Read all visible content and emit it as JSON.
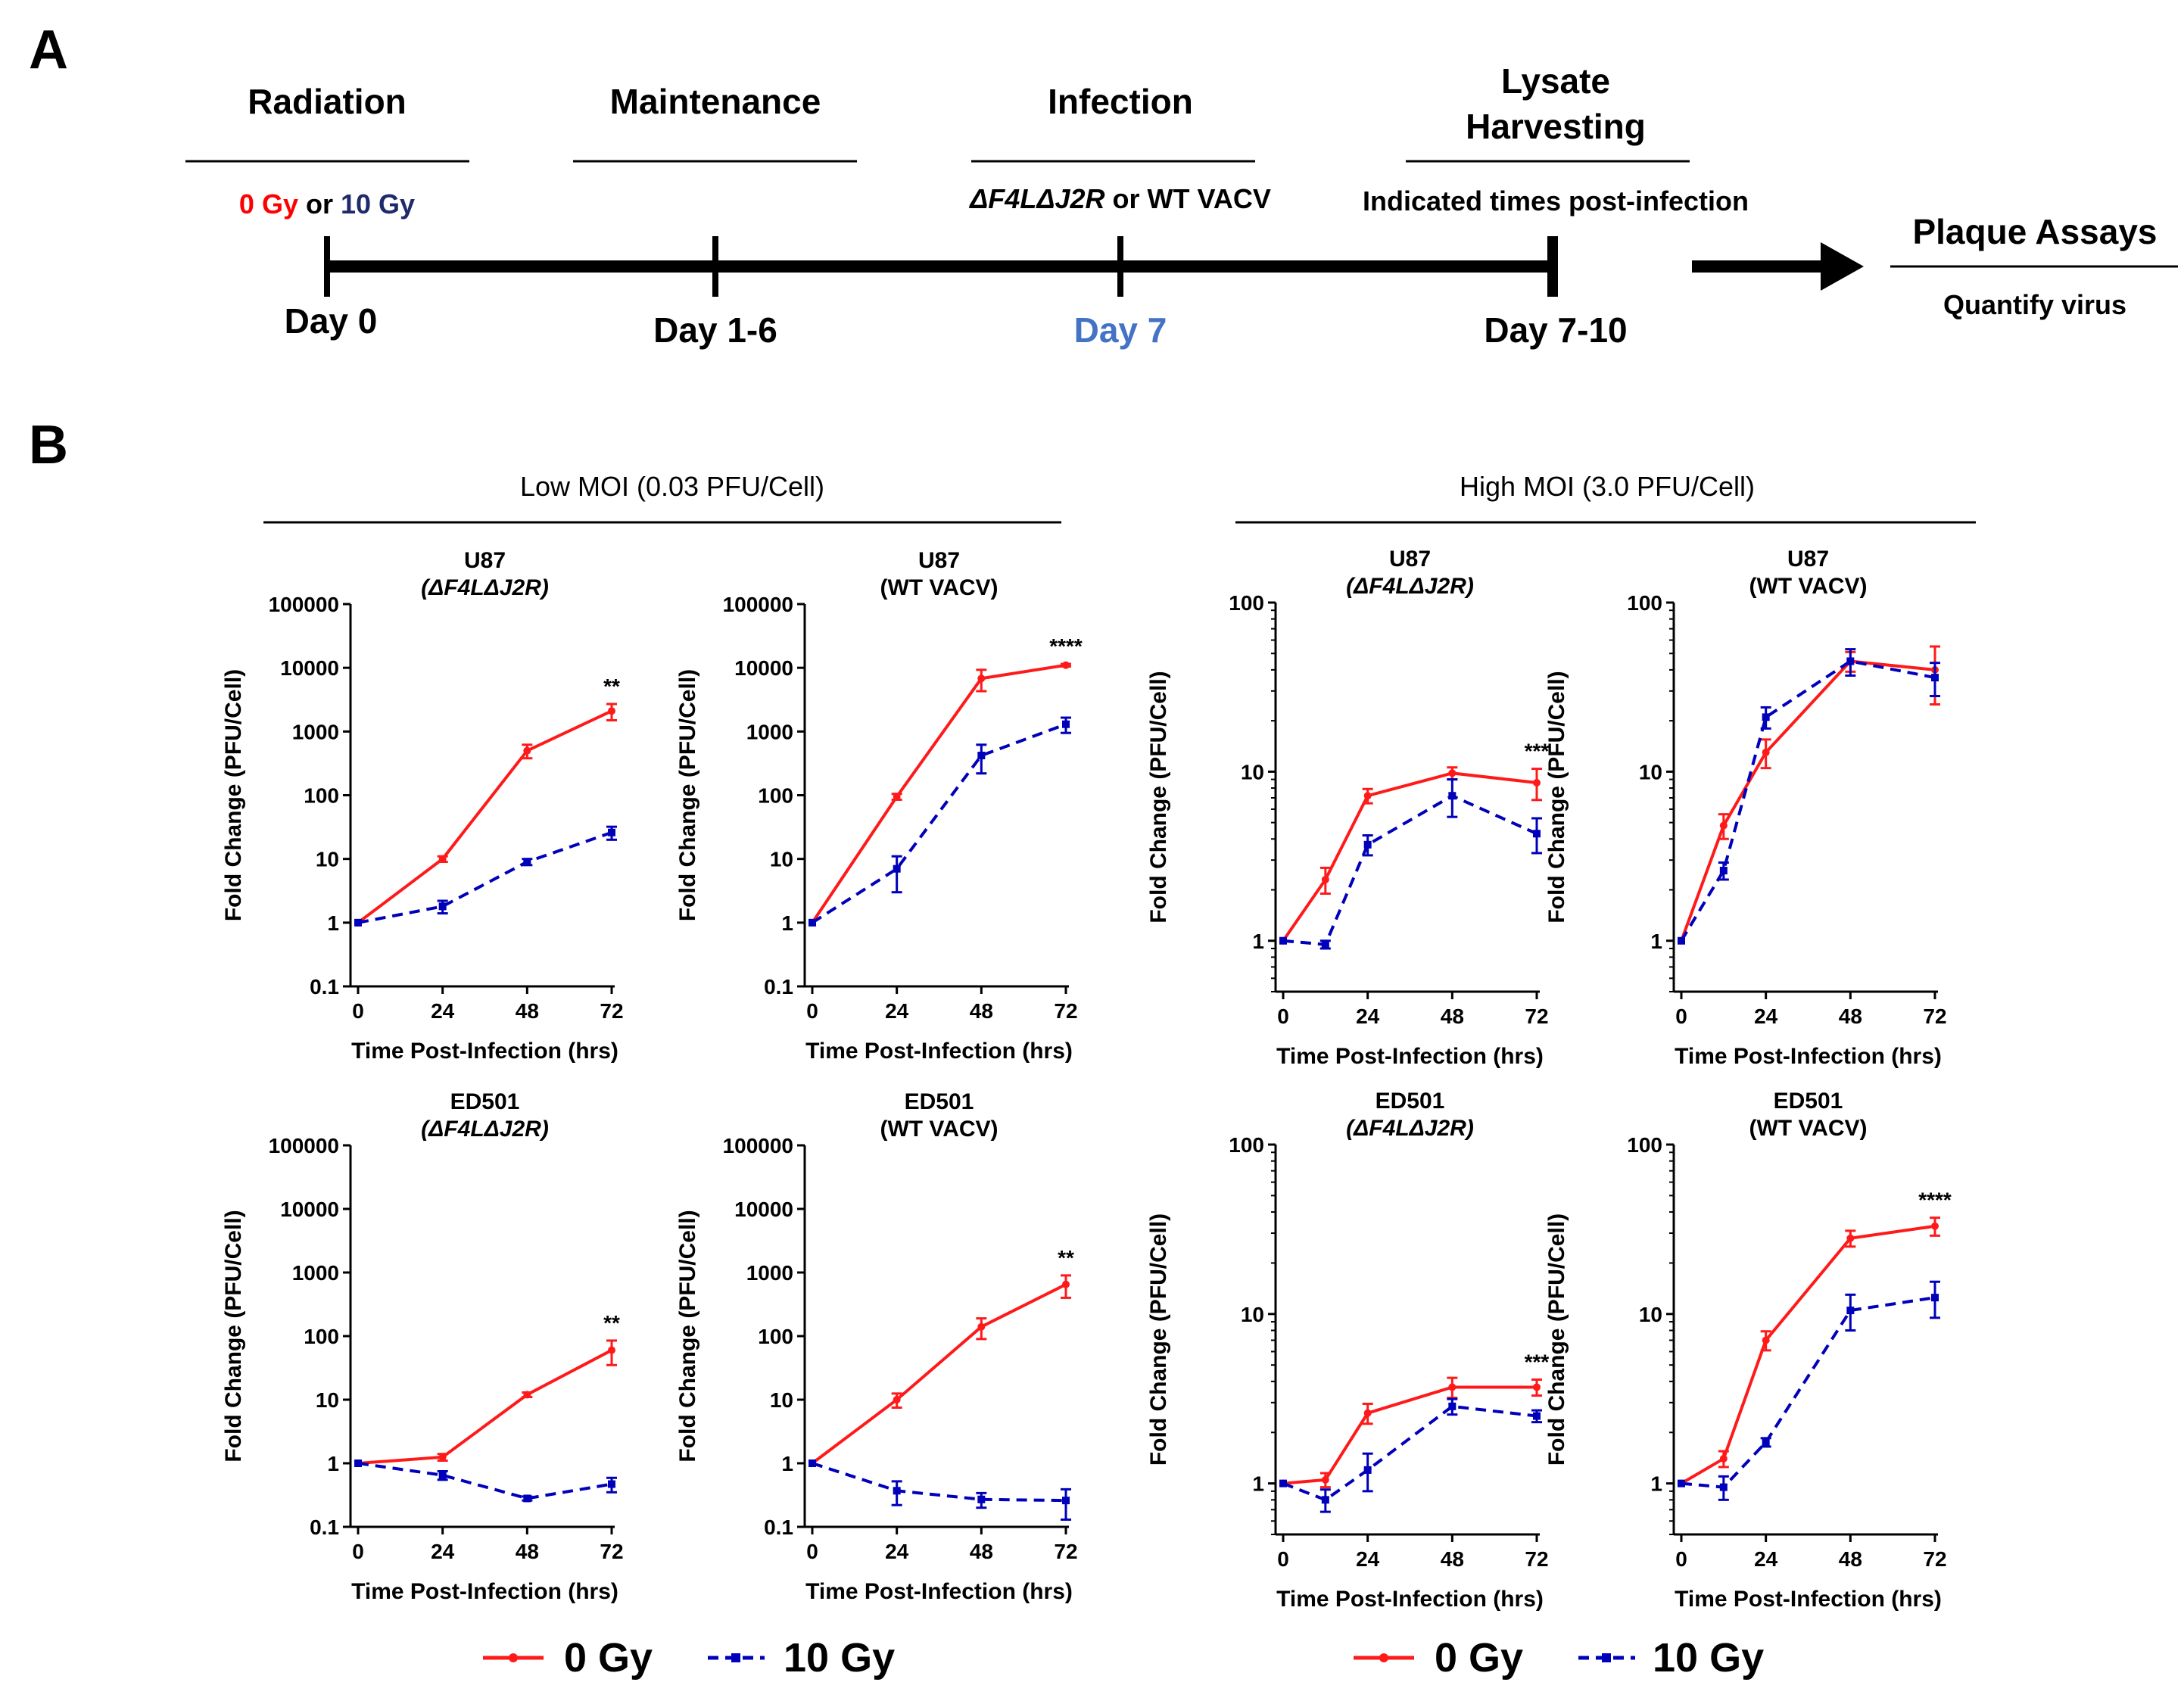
{
  "panel_a": {
    "label": "A",
    "stages": [
      "Radiation",
      "Maintenance",
      "Infection"
    ],
    "stage4_line1": "Lysate",
    "stage4_line2": "Harvesting",
    "dose_0": "0 Gy",
    "dose_or": " or ",
    "dose_10": "10 Gy",
    "virus_delta": "ΔF4LΔJ2R",
    "virus_rest": " or WT VACV",
    "harvest_note": "Indicated times post-infection",
    "days": [
      "Day 0",
      "Day 1-6",
      "Day 7",
      "Day 7-10"
    ],
    "plaque_title": "Plaque Assays",
    "plaque_sub": "Quantify virus",
    "colors": {
      "red": "#ff0000",
      "navy": "#1f2a6b",
      "blue": "#4472c4",
      "black": "#000000"
    }
  },
  "panel_b": {
    "label": "B",
    "group_low": "Low MOI (0.03 PFU/Cell)",
    "group_high": "High MOI (3.0 PFU/Cell)",
    "legend": {
      "s0": "0 Gy",
      "s10": "10 Gy"
    },
    "colors": {
      "gy0": "#ff1a1a",
      "gy10": "#0000bb"
    }
  },
  "chart_data": [
    {
      "type": "line",
      "id": "low-u87-mut",
      "title": "U87",
      "subtitle": "(ΔF4LΔJ2R)",
      "subtitle_italic": true,
      "xlabel": "Time Post-Infection (hrs)",
      "ylabel": "Fold Change (PFU/Cell)",
      "yscale": "log",
      "ylim": [
        0.1,
        100000
      ],
      "yticks": [
        "0.1",
        "1",
        "10",
        "100",
        "1000",
        "10000",
        "100000"
      ],
      "xticks": [
        0,
        24,
        48,
        72
      ],
      "xlim": [
        0,
        72
      ],
      "series": [
        {
          "name": "0 Gy",
          "x": [
            0,
            24,
            48,
            72
          ],
          "y": [
            1,
            10,
            500,
            2100
          ],
          "err": [
            0,
            1,
            120,
            600
          ]
        },
        {
          "name": "10 Gy",
          "x": [
            0,
            24,
            48,
            72
          ],
          "y": [
            1,
            1.8,
            9,
            26
          ],
          "err": [
            0,
            0.4,
            1,
            6
          ]
        }
      ],
      "annotation": "**"
    },
    {
      "type": "line",
      "id": "low-u87-wt",
      "title": "U87",
      "subtitle": "(WT VACV)",
      "subtitle_italic": false,
      "xlabel": "Time Post-Infection (hrs)",
      "ylabel": "Fold Change (PFU/Cell)",
      "yscale": "log",
      "ylim": [
        0.1,
        100000
      ],
      "yticks": [
        "0.1",
        "1",
        "10",
        "100",
        "1000",
        "10000",
        "100000"
      ],
      "xticks": [
        0,
        24,
        48,
        72
      ],
      "xlim": [
        0,
        72
      ],
      "series": [
        {
          "name": "0 Gy",
          "x": [
            0,
            24,
            48,
            72
          ],
          "y": [
            1,
            95,
            6800,
            11000
          ],
          "err": [
            0,
            10,
            2500,
            500
          ]
        },
        {
          "name": "10 Gy",
          "x": [
            0,
            24,
            48,
            72
          ],
          "y": [
            1,
            7,
            420,
            1300
          ],
          "err": [
            0,
            4,
            200,
            350
          ]
        }
      ],
      "annotation": "****"
    },
    {
      "type": "line",
      "id": "high-u87-mut",
      "title": "U87",
      "subtitle": "(ΔF4LΔJ2R)",
      "subtitle_italic": true,
      "xlabel": "Time Post-Infection (hrs)",
      "ylabel": "Fold Change (PFU/Cell)",
      "yscale": "log",
      "ylim": [
        0.5,
        100
      ],
      "yticks": [
        "1",
        "10",
        "100"
      ],
      "xticks": [
        0,
        24,
        48,
        72
      ],
      "xlim": [
        0,
        72
      ],
      "series": [
        {
          "name": "0 Gy",
          "x": [
            0,
            12,
            24,
            48,
            72
          ],
          "y": [
            1,
            2.3,
            7.2,
            9.8,
            8.6
          ],
          "err": [
            0,
            0.4,
            0.7,
            0.8,
            1.8
          ]
        },
        {
          "name": "10 Gy",
          "x": [
            0,
            12,
            24,
            48,
            72
          ],
          "y": [
            1,
            0.95,
            3.7,
            7.2,
            4.3
          ],
          "err": [
            0,
            0.05,
            0.5,
            1.8,
            1.0
          ]
        }
      ],
      "annotation": "***"
    },
    {
      "type": "line",
      "id": "high-u87-wt",
      "title": "U87",
      "subtitle": "(WT VACV)",
      "subtitle_italic": false,
      "xlabel": "Time Post-Infection (hrs)",
      "ylabel": "Fold Change (PFU/Cell)",
      "yscale": "log",
      "ylim": [
        0.5,
        100
      ],
      "yticks": [
        "1",
        "10",
        "100"
      ],
      "xticks": [
        0,
        24,
        48,
        72
      ],
      "xlim": [
        0,
        72
      ],
      "series": [
        {
          "name": "0 Gy",
          "x": [
            0,
            12,
            24,
            48,
            72
          ],
          "y": [
            1,
            4.8,
            13,
            45,
            40
          ],
          "err": [
            0,
            0.8,
            2.5,
            6,
            15
          ]
        },
        {
          "name": "10 Gy",
          "x": [
            0,
            12,
            24,
            48,
            72
          ],
          "y": [
            1,
            2.6,
            21,
            45,
            36
          ],
          "err": [
            0,
            0.3,
            3,
            8,
            8
          ]
        }
      ],
      "annotation": ""
    },
    {
      "type": "line",
      "id": "low-ed501-mut",
      "title": "ED501",
      "subtitle": "(ΔF4LΔJ2R)",
      "subtitle_italic": true,
      "xlabel": "Time Post-Infection (hrs)",
      "ylabel": "Fold Change (PFU/Cell)",
      "yscale": "log",
      "ylim": [
        0.1,
        100000
      ],
      "yticks": [
        "0.1",
        "1",
        "10",
        "100",
        "1000",
        "10000",
        "100000"
      ],
      "xticks": [
        0,
        24,
        48,
        72
      ],
      "xlim": [
        0,
        72
      ],
      "series": [
        {
          "name": "0 Gy",
          "x": [
            0,
            24,
            48,
            72
          ],
          "y": [
            1,
            1.25,
            12,
            60
          ],
          "err": [
            0,
            0.15,
            1,
            25
          ]
        },
        {
          "name": "10 Gy",
          "x": [
            0,
            24,
            48,
            72
          ],
          "y": [
            1,
            0.65,
            0.28,
            0.47
          ],
          "err": [
            0,
            0.1,
            0.02,
            0.12
          ]
        }
      ],
      "annotation": "**"
    },
    {
      "type": "line",
      "id": "low-ed501-wt",
      "title": "ED501",
      "subtitle": "(WT VACV)",
      "subtitle_italic": false,
      "xlabel": "Time Post-Infection (hrs)",
      "ylabel": "Fold Change (PFU/Cell)",
      "yscale": "log",
      "ylim": [
        0.1,
        100000
      ],
      "yticks": [
        "0.1",
        "1",
        "10",
        "100",
        "1000",
        "10000",
        "100000"
      ],
      "xticks": [
        0,
        24,
        48,
        72
      ],
      "xlim": [
        0,
        72
      ],
      "series": [
        {
          "name": "0 Gy",
          "x": [
            0,
            24,
            48,
            72
          ],
          "y": [
            1,
            10,
            140,
            650
          ],
          "err": [
            0,
            2.5,
            50,
            250
          ]
        },
        {
          "name": "10 Gy",
          "x": [
            0,
            24,
            48,
            72
          ],
          "y": [
            1,
            0.37,
            0.27,
            0.26
          ],
          "err": [
            0,
            0.15,
            0.07,
            0.13
          ]
        }
      ],
      "annotation": "**"
    },
    {
      "type": "line",
      "id": "high-ed501-mut",
      "title": "ED501",
      "subtitle": "(ΔF4LΔJ2R)",
      "subtitle_italic": true,
      "xlabel": "Time Post-Infection (hrs)",
      "ylabel": "Fold Change (PFU/Cell)",
      "yscale": "log",
      "ylim": [
        0.5,
        100
      ],
      "yticks": [
        "1",
        "10",
        "100"
      ],
      "xticks": [
        0,
        24,
        48,
        72
      ],
      "xlim": [
        0,
        72
      ],
      "series": [
        {
          "name": "0 Gy",
          "x": [
            0,
            12,
            24,
            48,
            72
          ],
          "y": [
            1,
            1.05,
            2.6,
            3.7,
            3.7
          ],
          "err": [
            0,
            0.1,
            0.35,
            0.5,
            0.4
          ]
        },
        {
          "name": "10 Gy",
          "x": [
            0,
            12,
            24,
            48,
            72
          ],
          "y": [
            1,
            0.8,
            1.2,
            2.85,
            2.5
          ],
          "err": [
            0,
            0.12,
            0.3,
            0.3,
            0.2
          ]
        }
      ],
      "annotation": "***"
    },
    {
      "type": "line",
      "id": "high-ed501-wt",
      "title": "ED501",
      "subtitle": "(WT VACV)",
      "subtitle_italic": false,
      "xlabel": "Time Post-Infection (hrs)",
      "ylabel": "Fold Change (PFU/Cell)",
      "yscale": "log",
      "ylim": [
        0.5,
        100
      ],
      "yticks": [
        "1",
        "10",
        "100"
      ],
      "xticks": [
        0,
        24,
        48,
        72
      ],
      "xlim": [
        0,
        72
      ],
      "series": [
        {
          "name": "0 Gy",
          "x": [
            0,
            12,
            24,
            48,
            72
          ],
          "y": [
            1,
            1.4,
            7,
            28,
            33
          ],
          "err": [
            0,
            0.15,
            0.9,
            3,
            4
          ]
        },
        {
          "name": "10 Gy",
          "x": [
            0,
            12,
            24,
            48,
            72
          ],
          "y": [
            1,
            0.95,
            1.75,
            10.5,
            12.5
          ],
          "err": [
            0,
            0.15,
            0.1,
            2.5,
            3
          ]
        }
      ],
      "annotation": "****"
    }
  ]
}
